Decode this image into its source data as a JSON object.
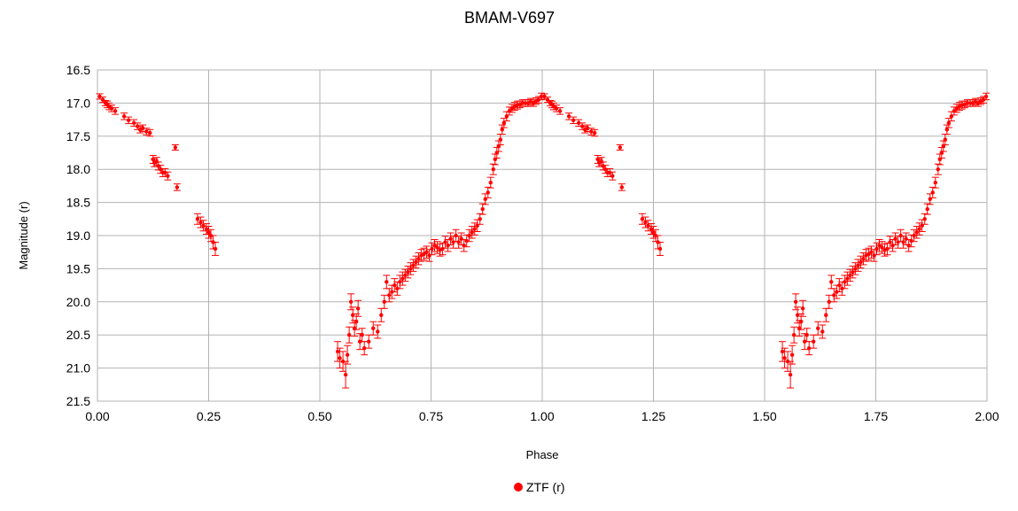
{
  "chart_data": {
    "type": "scatter",
    "title": "BMAM-V697",
    "xlabel": "Phase",
    "ylabel": "Magnitude (r)",
    "xlim": [
      0.0,
      2.0
    ],
    "ylim": [
      16.5,
      21.5
    ],
    "y_inverted": true,
    "xticks": [
      "0.00",
      "0.25",
      "0.50",
      "0.75",
      "1.00",
      "1.25",
      "1.50",
      "1.75",
      "2.00"
    ],
    "yticks": [
      "16.5",
      "17.0",
      "17.5",
      "18.0",
      "18.5",
      "19.0",
      "19.5",
      "20.0",
      "20.5",
      "21.0",
      "21.5"
    ],
    "grid": true,
    "legend_position": "bottom",
    "series": [
      {
        "name": "ZTF (r)",
        "color": "#ff0000",
        "error_bars": true,
        "period_duplicated": true,
        "x": [
          0.005,
          0.012,
          0.018,
          0.022,
          0.026,
          0.032,
          0.04,
          0.06,
          0.07,
          0.082,
          0.09,
          0.096,
          0.102,
          0.11,
          0.118,
          0.125,
          0.128,
          0.133,
          0.137,
          0.142,
          0.147,
          0.152,
          0.158,
          0.175,
          0.179,
          0.225,
          0.232,
          0.238,
          0.245,
          0.25,
          0.255,
          0.26,
          0.265,
          0.54,
          0.545,
          0.552,
          0.558,
          0.562,
          0.566,
          0.57,
          0.574,
          0.578,
          0.582,
          0.586,
          0.59,
          0.595,
          0.6,
          0.61,
          0.62,
          0.63,
          0.638,
          0.645,
          0.65,
          0.656,
          0.662,
          0.668,
          0.674,
          0.68,
          0.686,
          0.692,
          0.698,
          0.704,
          0.71,
          0.716,
          0.722,
          0.728,
          0.734,
          0.74,
          0.746,
          0.752,
          0.758,
          0.764,
          0.77,
          0.776,
          0.782,
          0.788,
          0.794,
          0.8,
          0.806,
          0.812,
          0.818,
          0.824,
          0.83,
          0.836,
          0.842,
          0.848,
          0.854,
          0.86,
          0.866,
          0.872,
          0.878,
          0.884,
          0.89,
          0.894,
          0.898,
          0.902,
          0.906,
          0.91,
          0.914,
          0.92,
          0.926,
          0.932,
          0.938,
          0.944,
          0.95,
          0.956,
          0.962,
          0.968,
          0.974,
          0.98,
          0.986,
          0.992,
          0.998
        ],
        "y": [
          16.9,
          16.95,
          17.0,
          17.02,
          17.05,
          17.08,
          17.12,
          17.2,
          17.26,
          17.3,
          17.35,
          17.4,
          17.38,
          17.43,
          17.45,
          17.85,
          17.9,
          17.88,
          17.95,
          18.0,
          18.05,
          18.05,
          18.1,
          17.67,
          18.27,
          18.75,
          18.8,
          18.85,
          18.9,
          18.95,
          19.0,
          19.1,
          19.2,
          20.75,
          20.85,
          20.9,
          21.1,
          20.8,
          20.5,
          20.0,
          20.2,
          20.4,
          20.3,
          20.1,
          20.6,
          20.5,
          20.7,
          20.6,
          20.4,
          20.45,
          20.2,
          20.0,
          19.7,
          19.9,
          19.85,
          19.75,
          19.8,
          19.7,
          19.65,
          19.6,
          19.55,
          19.5,
          19.45,
          19.4,
          19.35,
          19.3,
          19.28,
          19.25,
          19.3,
          19.2,
          19.15,
          19.18,
          19.22,
          19.2,
          19.1,
          19.15,
          19.05,
          19.1,
          19.0,
          19.1,
          19.05,
          19.15,
          19.08,
          19.0,
          18.95,
          18.9,
          18.85,
          18.75,
          18.6,
          18.45,
          18.35,
          18.2,
          18.0,
          17.85,
          17.75,
          17.65,
          17.55,
          17.4,
          17.3,
          17.2,
          17.12,
          17.08,
          17.05,
          17.03,
          17.02,
          17.0,
          17.0,
          17.0,
          16.98,
          17.0,
          16.97,
          16.95,
          16.9
        ],
        "err": [
          0.04,
          0.04,
          0.04,
          0.05,
          0.05,
          0.05,
          0.05,
          0.05,
          0.05,
          0.05,
          0.05,
          0.05,
          0.05,
          0.05,
          0.05,
          0.06,
          0.06,
          0.06,
          0.06,
          0.06,
          0.06,
          0.06,
          0.06,
          0.04,
          0.05,
          0.08,
          0.08,
          0.08,
          0.08,
          0.09,
          0.09,
          0.1,
          0.1,
          0.15,
          0.15,
          0.15,
          0.2,
          0.14,
          0.12,
          0.12,
          0.12,
          0.12,
          0.12,
          0.12,
          0.12,
          0.1,
          0.1,
          0.1,
          0.1,
          0.1,
          0.1,
          0.1,
          0.1,
          0.1,
          0.1,
          0.1,
          0.1,
          0.1,
          0.1,
          0.09,
          0.09,
          0.09,
          0.09,
          0.09,
          0.09,
          0.09,
          0.09,
          0.09,
          0.09,
          0.09,
          0.09,
          0.09,
          0.09,
          0.09,
          0.09,
          0.09,
          0.09,
          0.09,
          0.09,
          0.09,
          0.09,
          0.09,
          0.09,
          0.09,
          0.09,
          0.09,
          0.09,
          0.08,
          0.08,
          0.08,
          0.08,
          0.08,
          0.08,
          0.08,
          0.08,
          0.08,
          0.08,
          0.07,
          0.07,
          0.07,
          0.06,
          0.06,
          0.06,
          0.06,
          0.05,
          0.05,
          0.05,
          0.05,
          0.05,
          0.05,
          0.05,
          0.05,
          0.05
        ]
      }
    ]
  }
}
